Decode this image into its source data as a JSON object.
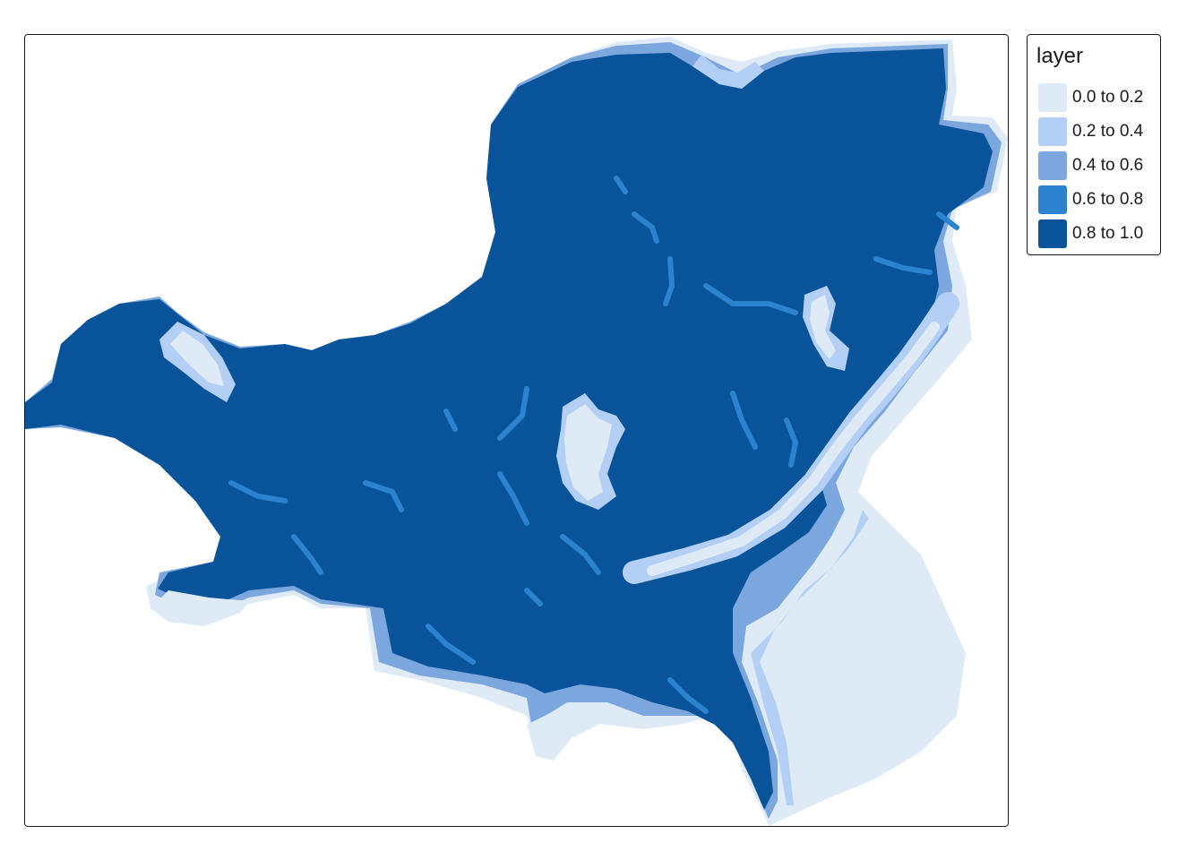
{
  "legend": {
    "title": "layer",
    "items": [
      {
        "label": "0.0 to 0.2",
        "color": "#deebf7"
      },
      {
        "label": "0.2 to 0.4",
        "color": "#b3cff5"
      },
      {
        "label": "0.4 to 0.6",
        "color": "#7ba7de"
      },
      {
        "label": "0.6 to 0.8",
        "color": "#2b83cf"
      },
      {
        "label": "0.8 to 1.0",
        "color": "#08539a"
      }
    ]
  }
}
